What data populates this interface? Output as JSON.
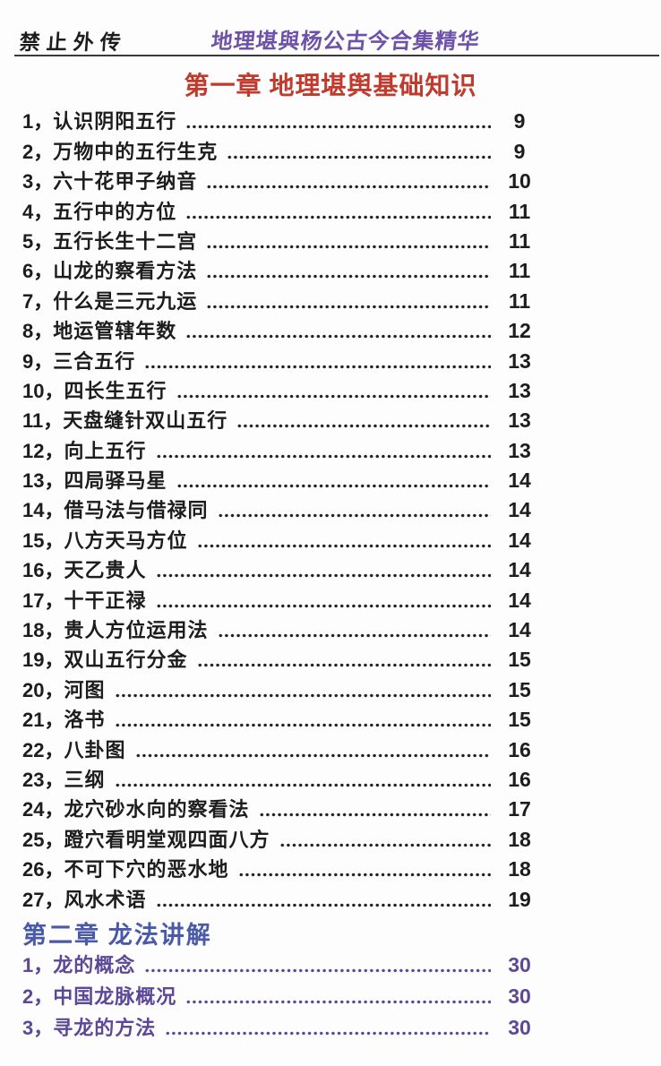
{
  "header": {
    "stamp": "禁止外传",
    "book_title": "地理堪與杨公古今合集精华"
  },
  "chapter1": {
    "title": "第一章 地理堪舆基础知识",
    "items": [
      {
        "num": "1，",
        "label": "认识阴阳五行",
        "page": "9"
      },
      {
        "num": "2，",
        "label": "万物中的五行生克",
        "page": "9"
      },
      {
        "num": "3，",
        "label": "六十花甲子纳音",
        "page": "10"
      },
      {
        "num": "4，",
        "label": "五行中的方位",
        "page": "11"
      },
      {
        "num": "5，",
        "label": "五行长生十二宫",
        "page": "11"
      },
      {
        "num": "6，",
        "label": "山龙的察看方法",
        "page": "11"
      },
      {
        "num": "7，",
        "label": "什么是三元九运",
        "page": "11"
      },
      {
        "num": "8，",
        "label": "地运管辖年数",
        "page": "12"
      },
      {
        "num": "9，",
        "label": "三合五行",
        "page": "13"
      },
      {
        "num": "10，",
        "label": "四长生五行",
        "page": "13"
      },
      {
        "num": "11，",
        "label": "天盘缝针双山五行",
        "page": "13"
      },
      {
        "num": "12，",
        "label": "向上五行",
        "page": "13"
      },
      {
        "num": "13，",
        "label": "四局驿马星",
        "page": "14"
      },
      {
        "num": "14，",
        "label": "借马法与借禄同",
        "page": "14"
      },
      {
        "num": "15，",
        "label": "八方天马方位",
        "page": "14"
      },
      {
        "num": "16，",
        "label": "天乙贵人",
        "page": "14"
      },
      {
        "num": "17，",
        "label": "十干正禄",
        "page": "14"
      },
      {
        "num": "18，",
        "label": "贵人方位运用法",
        "page": "14"
      },
      {
        "num": "19，",
        "label": "双山五行分金",
        "page": "15"
      },
      {
        "num": "20，",
        "label": "河图",
        "page": "15"
      },
      {
        "num": "21，",
        "label": "洛书",
        "page": "15"
      },
      {
        "num": "22，",
        "label": "八卦图",
        "page": "16"
      },
      {
        "num": "23，",
        "label": "三纲",
        "page": "16"
      },
      {
        "num": "24，",
        "label": "龙穴砂水向的察看法",
        "page": "17"
      },
      {
        "num": "25，",
        "label": "蹬穴看明堂观四面八方",
        "page": "18"
      },
      {
        "num": "26，",
        "label": "不可下穴的恶水地",
        "page": "18"
      },
      {
        "num": "27，",
        "label": "风水术语",
        "page": "19"
      }
    ]
  },
  "chapter2": {
    "title": "第二章 龙法讲解",
    "items": [
      {
        "num": "1，",
        "label": "龙的概念",
        "page": "30"
      },
      {
        "num": "2，",
        "label": "中国龙脉概况",
        "page": "30"
      },
      {
        "num": "3，",
        "label": "寻龙的方法",
        "page": "30"
      }
    ]
  },
  "colors": {
    "ink": "#1f1f1f",
    "chapter1_title_red": "#c03a2d",
    "handwritten_purple": "#6e51a8",
    "chapter2_title_blue": "#4a5aa8",
    "chapter2_item_purple": "#5c4898"
  }
}
